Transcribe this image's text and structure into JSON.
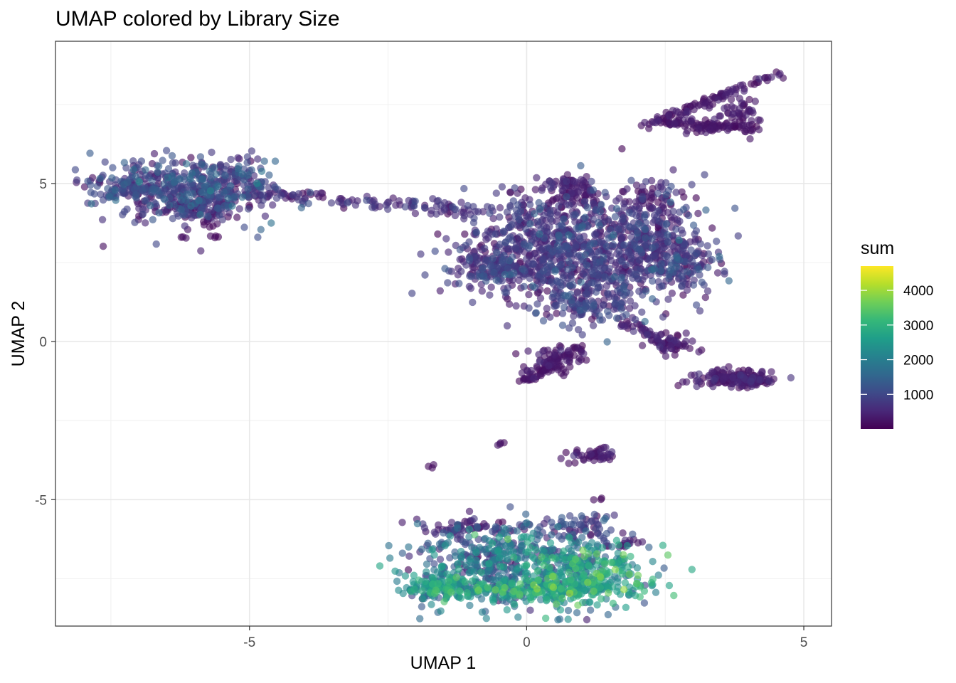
{
  "chart_data": {
    "type": "scatter",
    "title": "UMAP colored by Library Size",
    "xlabel": "UMAP 1",
    "ylabel": "UMAP 2",
    "xlim": [
      -8.5,
      5.5
    ],
    "ylim": [
      -9.0,
      9.5
    ],
    "x_ticks": [
      -5,
      0,
      5
    ],
    "x_tick_labels": [
      "-5",
      "0",
      "5"
    ],
    "y_ticks": [
      -5,
      0,
      5
    ],
    "y_tick_labels": [
      "-5",
      "0",
      "5"
    ],
    "grid": true,
    "legend": {
      "title": "sum",
      "placement": "right",
      "min": 0,
      "max": 4700,
      "ticks": [
        1000,
        2000,
        3000,
        4000
      ],
      "tick_labels": [
        "1000",
        "2000",
        "3000",
        "4000"
      ],
      "palette": [
        "#440154",
        "#482878",
        "#3e4a89",
        "#31688e",
        "#26828e",
        "#1f9e89",
        "#35b779",
        "#6ece58",
        "#b5de2b",
        "#fde725"
      ]
    },
    "clusters": [
      {
        "cx": -6.4,
        "cy": 4.9,
        "sx": 0.8,
        "sy": 0.45,
        "n": 260,
        "sum_mean": 900,
        "sum_sd": 450
      },
      {
        "cx": -5.6,
        "cy": 4.8,
        "sx": 0.55,
        "sy": 0.5,
        "n": 220,
        "sum_mean": 850,
        "sum_sd": 450
      },
      {
        "cx": -7.3,
        "cy": 4.8,
        "sx": 0.35,
        "sy": 0.2,
        "n": 70,
        "sum_mean": 900,
        "sum_sd": 350
      },
      {
        "cx": -6.0,
        "cy": 4.2,
        "sx": 0.45,
        "sy": 0.18,
        "n": 70,
        "sum_mean": 350,
        "sum_sd": 250
      },
      {
        "cx": -6.2,
        "cy": 3.25,
        "sx": 0.04,
        "sy": 0.04,
        "n": 3,
        "sum_mean": 150,
        "sum_sd": 60
      },
      {
        "cx": -5.6,
        "cy": 3.3,
        "sx": 0.06,
        "sy": 0.06,
        "n": 4,
        "sum_mean": 150,
        "sum_sd": 60
      },
      {
        "cx": -5.7,
        "cy": 3.7,
        "sx": 0.1,
        "sy": 0.1,
        "n": 5,
        "sum_mean": 150,
        "sum_sd": 60
      },
      {
        "cx": 0.3,
        "cy": 3.0,
        "sx": 0.8,
        "sy": 0.8,
        "n": 480,
        "sum_mean": 650,
        "sum_sd": 350
      },
      {
        "cx": 1.4,
        "cy": 2.6,
        "sx": 0.6,
        "sy": 0.9,
        "n": 320,
        "sum_mean": 700,
        "sum_sd": 400
      },
      {
        "cx": 2.3,
        "cy": 3.2,
        "sx": 0.5,
        "sy": 0.8,
        "n": 260,
        "sum_mean": 650,
        "sum_sd": 400
      },
      {
        "cx": -0.6,
        "cy": 2.3,
        "sx": 0.4,
        "sy": 0.3,
        "n": 120,
        "sum_mean": 700,
        "sum_sd": 350
      },
      {
        "cx": 2.8,
        "cy": 2.4,
        "sx": 0.3,
        "sy": 0.4,
        "n": 110,
        "sum_mean": 800,
        "sum_sd": 400
      },
      {
        "cx": 1.1,
        "cy": 1.2,
        "sx": 0.4,
        "sy": 0.3,
        "n": 100,
        "sum_mean": 700,
        "sum_sd": 350
      },
      {
        "cx": 0.9,
        "cy": 4.5,
        "sx": 0.25,
        "sy": 0.25,
        "n": 70,
        "sum_mean": 350,
        "sum_sd": 250
      },
      {
        "cx": 0.8,
        "cy": 5.0,
        "sx": 0.2,
        "sy": 0.15,
        "n": 35,
        "sum_mean": 300,
        "sum_sd": 200
      },
      {
        "cx": 2.2,
        "cy": 4.5,
        "sx": 0.2,
        "sy": 0.2,
        "n": 45,
        "sum_mean": 350,
        "sum_sd": 250
      },
      {
        "cx": 3.3,
        "cy": 6.8,
        "sx": 0.25,
        "sy": 0.08,
        "n": 55,
        "sum_mean": 200,
        "sum_sd": 120
      },
      {
        "cx": 2.7,
        "cy": 6.9,
        "sx": 0.2,
        "sy": 0.08,
        "n": 25,
        "sum_mean": 200,
        "sum_sd": 120
      },
      {
        "cx": 3.8,
        "cy": 7.3,
        "sx": 0.2,
        "sy": 0.25,
        "n": 40,
        "sum_mean": 250,
        "sum_sd": 150
      },
      {
        "cx": 3.95,
        "cy": 6.8,
        "sx": 0.12,
        "sy": 0.12,
        "n": 18,
        "sum_mean": 200,
        "sum_sd": 120
      },
      {
        "cx": 0.55,
        "cy": -0.6,
        "sx": 0.28,
        "sy": 0.22,
        "n": 60,
        "sum_mean": 250,
        "sum_sd": 150
      },
      {
        "cx": 2.5,
        "cy": -0.1,
        "sx": 0.25,
        "sy": 0.18,
        "n": 40,
        "sum_mean": 350,
        "sum_sd": 200
      },
      {
        "cx": 3.7,
        "cy": -1.2,
        "sx": 0.35,
        "sy": 0.15,
        "n": 80,
        "sum_mean": 350,
        "sum_sd": 200
      },
      {
        "cx": 4.1,
        "cy": -1.25,
        "sx": 0.2,
        "sy": 0.08,
        "n": 40,
        "sum_mean": 300,
        "sum_sd": 180
      },
      {
        "cx": 1.2,
        "cy": -3.6,
        "sx": 0.25,
        "sy": 0.12,
        "n": 45,
        "sum_mean": 250,
        "sum_sd": 150
      },
      {
        "cx": -0.45,
        "cy": -3.25,
        "sx": 0.05,
        "sy": 0.05,
        "n": 4,
        "sum_mean": 150,
        "sum_sd": 60
      },
      {
        "cx": -1.7,
        "cy": -3.95,
        "sx": 0.04,
        "sy": 0.04,
        "n": 3,
        "sum_mean": 150,
        "sum_sd": 60
      },
      {
        "cx": 1.3,
        "cy": -5.0,
        "sx": 0.04,
        "sy": 0.04,
        "n": 3,
        "sum_mean": 150,
        "sum_sd": 60
      },
      {
        "cx": -0.6,
        "cy": -7.0,
        "sx": 0.75,
        "sy": 0.6,
        "n": 380,
        "sum_mean": 1500,
        "sum_sd": 650
      },
      {
        "cx": 1.0,
        "cy": -7.3,
        "sx": 0.6,
        "sy": 0.55,
        "n": 360,
        "sum_mean": 2300,
        "sum_sd": 700
      },
      {
        "cx": -1.6,
        "cy": -7.75,
        "sx": 0.3,
        "sy": 0.2,
        "n": 120,
        "sum_mean": 2400,
        "sum_sd": 500
      },
      {
        "cx": 0.2,
        "cy": -7.85,
        "sx": 0.8,
        "sy": 0.18,
        "n": 200,
        "sum_mean": 2600,
        "sum_sd": 500
      },
      {
        "cx": 0.9,
        "cy": -5.9,
        "sx": 0.4,
        "sy": 0.25,
        "n": 70,
        "sum_mean": 800,
        "sum_sd": 400
      },
      {
        "cx": -1.0,
        "cy": -5.9,
        "sx": 0.5,
        "sy": 0.15,
        "n": 60,
        "sum_mean": 400,
        "sum_sd": 250
      }
    ],
    "paths": [
      {
        "from": [
          -5.2,
          4.75
        ],
        "to": [
          -0.9,
          4.1
        ],
        "n": 130,
        "spread": 0.12,
        "sum_mean": 600,
        "sum_sd": 300
      },
      {
        "from": [
          2.2,
          6.9
        ],
        "to": [
          4.6,
          8.5
        ],
        "n": 90,
        "spread": 0.07,
        "sum_mean": 250,
        "sum_sd": 150
      },
      {
        "from": [
          -0.05,
          -1.25
        ],
        "to": [
          1.0,
          -0.2
        ],
        "n": 60,
        "spread": 0.07,
        "sum_mean": 200,
        "sum_sd": 120
      },
      {
        "from": [
          1.7,
          0.6
        ],
        "to": [
          2.9,
          -0.3
        ],
        "n": 45,
        "spread": 0.1,
        "sum_mean": 300,
        "sum_sd": 180
      },
      {
        "from": [
          3.3,
          -1.0
        ],
        "to": [
          4.3,
          -1.3
        ],
        "n": 50,
        "spread": 0.06,
        "sum_mean": 300,
        "sum_sd": 150
      },
      {
        "from": [
          -0.1,
          4.8
        ],
        "to": [
          0.1,
          3.6
        ],
        "n": 20,
        "spread": 0.15,
        "sum_mean": 400,
        "sum_sd": 250
      },
      {
        "from": [
          1.5,
          -6.5
        ],
        "to": [
          2.1,
          -6.3
        ],
        "n": 15,
        "spread": 0.06,
        "sum_mean": 300,
        "sum_sd": 150
      }
    ]
  }
}
